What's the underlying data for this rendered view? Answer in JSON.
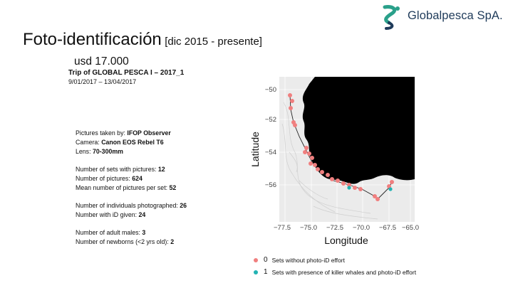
{
  "logo": {
    "name": "Globalpesca SpA.",
    "colors": {
      "teal": "#2aa08a",
      "navy": "#1f3b5a"
    }
  },
  "slide": {
    "title": "Foto-identificación",
    "title_range": "[dic 2015 - presente]",
    "price": "usd 17.000"
  },
  "trip": {
    "title": "Trip of GLOBAL PESCA I – 2017_1",
    "dates": "9/01/2017 – 13/04/2017"
  },
  "stats": {
    "pictures_label": "Pictures taken by: ",
    "pictures_value": "IFOP Observer",
    "camera_label": "Camera: ",
    "camera_value": "Canon EOS Rebel T6",
    "lens_label": "Lens: ",
    "lens_value": "70-300mm",
    "sets_label": "Number of sets with pictures: ",
    "sets_value": "12",
    "npics_label": "Number of pictures: ",
    "npics_value": "624",
    "mean_label": "Mean number of pictures per set: ",
    "mean_value": "52",
    "indiv_label": "Number of individuals photographed: ",
    "indiv_value": "26",
    "id_label": "Number with iD given: ",
    "id_value": "24",
    "males_label": "Number of adult males: ",
    "males_value": "3",
    "newborn_label": "Number of newborns (<2 yrs old): ",
    "newborn_value": "2"
  },
  "map": {
    "ylabel": "Latitude",
    "xlabel": "Longitude",
    "yticks": [
      "−50",
      "−52",
      "−54",
      "−56"
    ],
    "xticks": [
      "−77.5",
      "−75.0",
      "−72.5",
      "−70.0",
      "−67.5",
      "−65.0"
    ],
    "colors": {
      "set0": "#f07f7f",
      "set1": "#22b3b3",
      "land": "#000000",
      "panel": "#ebebeb"
    },
    "legend": [
      {
        "num": "0",
        "label": "Sets without photo-iD effort"
      },
      {
        "num": "1",
        "label": "Sets with presence of killer whales and photo-iD effort"
      }
    ]
  }
}
